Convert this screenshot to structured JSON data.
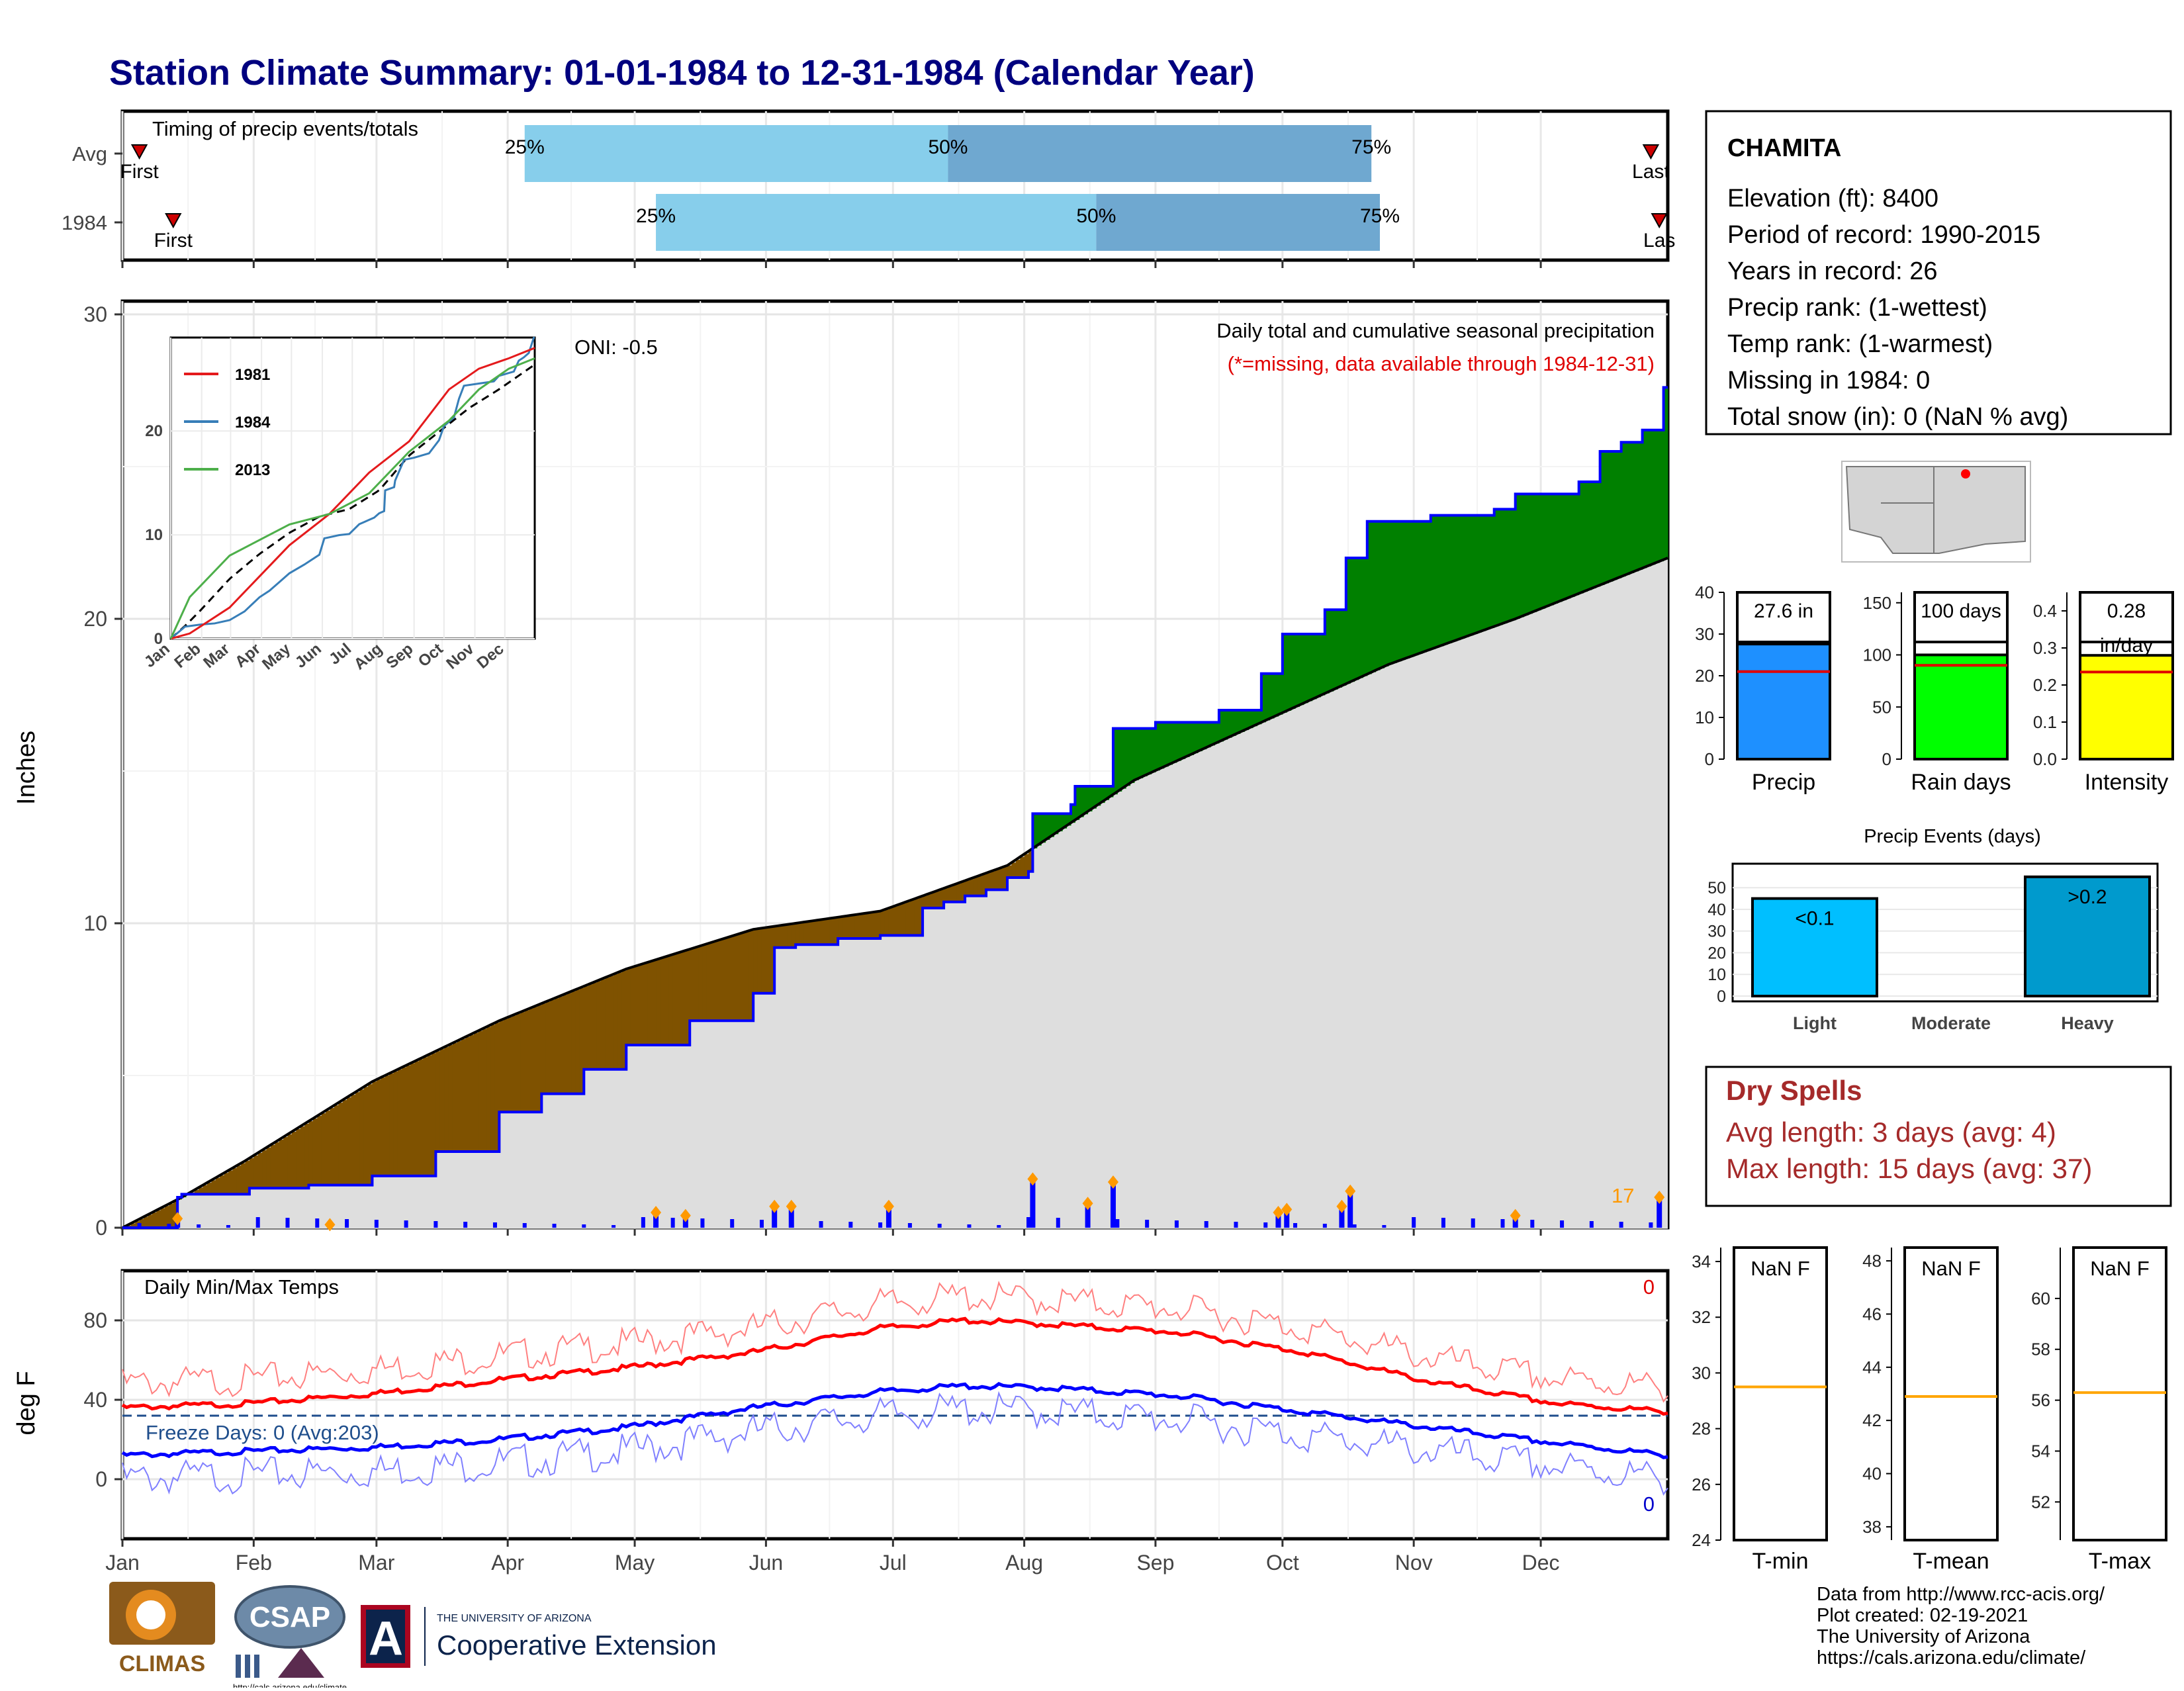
{
  "title": "Station Climate Summary: 01-01-1984 to 12-31-1984 (Calendar Year)",
  "colors": {
    "title": "#00007f",
    "wet": "#008000",
    "dry": "#7f5200",
    "normal": "#dedede",
    "cumulative": "#0000ff",
    "accent": "#ff9900",
    "dryspell": "#a52a2a"
  },
  "months": [
    "Jan",
    "Feb",
    "Mar",
    "Apr",
    "May",
    "Jun",
    "Jul",
    "Aug",
    "Sep",
    "Oct",
    "Nov",
    "Dec"
  ],
  "timing": {
    "title": "Timing of precip events/totals",
    "rows": [
      {
        "label": "Avg",
        "first_label": "First",
        "last_label": "Last",
        "p25": "25%",
        "p50": "50%",
        "p75": "75%",
        "first_day": 5,
        "p25_day": 96,
        "p50_day": 196,
        "p75_day": 296,
        "last_day": 362
      },
      {
        "label": "1984",
        "first_label": "First",
        "last_label": "Las",
        "p25": "25%",
        "p50": "50%",
        "p75": "75%",
        "first_day": 13,
        "p25_day": 127,
        "p50_day": 231,
        "p75_day": 298,
        "last_day": 364
      }
    ]
  },
  "info": {
    "station": "CHAMITA",
    "lines": [
      "Elevation (ft): 8400",
      "Period of record: 1990-2015",
      "Years in record: 26",
      "Precip rank:  (1-wettest)",
      "Temp rank:  (1-warmest)",
      "Missing in 1984: 0",
      "Total snow (in): 0 (NaN % avg)"
    ]
  },
  "main": {
    "ylabel": "Inches",
    "oni": "ONI: -0.5",
    "caption": "Daily total and cumulative seasonal precipitation",
    "missing_note": "(*=missing, data available through 1984-12-31)",
    "counter": "17"
  },
  "inset": {
    "legend": [
      {
        "name": "1981",
        "color": "#e41a1c"
      },
      {
        "name": "1984",
        "color": "#377eb8"
      },
      {
        "name": "2013",
        "color": "#4daf4a"
      }
    ],
    "yticks": [
      "0",
      "10",
      "20"
    ]
  },
  "temps": {
    "title": "Daily Min/Max Temps",
    "ylabel": "deg F",
    "freeze": "Freeze Days: 0 (Avg:203)",
    "max_count": "0",
    "min_count": "0"
  },
  "bars": [
    {
      "value_label": "27.6 in",
      "label": "Precip",
      "color": "#1e90ff",
      "ticks": [
        "0",
        "10",
        "20",
        "30",
        "40"
      ]
    },
    {
      "value_label": "100 days",
      "label": "Rain days",
      "color": "#00ff00",
      "ticks": [
        "0",
        "50",
        "100",
        "150"
      ]
    },
    {
      "value_label": "0.28",
      "value_label2": "in/day",
      "label": "Intensity",
      "color": "#ffff00",
      "ticks": [
        "0.0",
        "0.1",
        "0.2",
        "0.3",
        "0.4"
      ]
    }
  ],
  "events": {
    "title": "Precip Events (days)",
    "labels": [
      "Light",
      "Moderate",
      "Heavy"
    ],
    "value_labels": [
      "<0.1",
      "",
      ">0.2"
    ],
    "ticks": [
      "0",
      "10",
      "20",
      "30",
      "40",
      "50"
    ]
  },
  "dry_spells": {
    "title": "Dry Spells",
    "avg": "Avg length: 3 days (avg: 4)",
    "max": "Max length: 15 days (avg: 37)"
  },
  "temp_gauges": [
    {
      "value_label": "NaN F",
      "label": "T-min",
      "ticks": [
        "24",
        "26",
        "28",
        "30",
        "32",
        "34"
      ]
    },
    {
      "value_label": "NaN F",
      "label": "T-mean",
      "ticks": [
        "38",
        "40",
        "42",
        "44",
        "46",
        "48"
      ]
    },
    {
      "value_label": "NaN F",
      "label": "T-max",
      "ticks": [
        "52",
        "54",
        "56",
        "58",
        "60"
      ]
    }
  ],
  "footer": {
    "lines": [
      "Data from http://www.rcc-acis.org/",
      "Plot created: 02-19-2021",
      "The University of Arizona",
      "https://cals.arizona.edu/climate/"
    ],
    "logo_climas": "CLIMAS",
    "logo_csap": "CSAP",
    "logo_csap_url": "http://cals.arizona.edu/climate",
    "logo_ua_small": "THE UNIVERSITY OF ARIZONA",
    "logo_ua_big": "Cooperative Extension",
    "logo_ua_letter": "A"
  },
  "chart_data": {
    "type": "area",
    "title": "",
    "ylabel": "Inches",
    "ylim": [
      0,
      30
    ],
    "xlim_days": [
      1,
      366
    ],
    "series": [
      {
        "name": "1984",
        "x_day": [
          1,
          14,
          15,
          31,
          45,
          60,
          75,
          90,
          100,
          110,
          120,
          135,
          150,
          155,
          160,
          170,
          180,
          190,
          195,
          200,
          205,
          210,
          215,
          216,
          225,
          226,
          235,
          245,
          260,
          270,
          275,
          285,
          290,
          295,
          310,
          325,
          330,
          345,
          350,
          355,
          360,
          365,
          366
        ],
        "y": [
          0,
          1.0,
          1.1,
          1.3,
          1.4,
          1.7,
          2.5,
          3.8,
          4.4,
          5.2,
          6.0,
          6.8,
          7.7,
          9.2,
          9.3,
          9.5,
          9.6,
          10.5,
          10.7,
          10.9,
          11.1,
          11.5,
          11.7,
          13.6,
          13.9,
          14.5,
          16.4,
          16.6,
          17.0,
          18.2,
          19.5,
          20.3,
          22.0,
          23.2,
          23.4,
          23.6,
          24.1,
          24.5,
          25.5,
          25.8,
          26.2,
          27.6,
          27.6
        ]
      },
      {
        "name": "Average",
        "x_day": [
          1,
          15,
          30,
          60,
          90,
          120,
          150,
          180,
          210,
          240,
          270,
          300,
          330,
          366
        ],
        "y": [
          0,
          1.0,
          2.2,
          4.8,
          6.8,
          8.5,
          9.8,
          10.4,
          11.9,
          14.7,
          16.6,
          18.5,
          20.0,
          22.0
        ]
      }
    ],
    "daily_events_inches": [
      {
        "day": 14,
        "value": 0.3
      },
      {
        "day": 50,
        "value": 0.1
      },
      {
        "day": 127,
        "value": 0.5
      },
      {
        "day": 134,
        "value": 0.4
      },
      {
        "day": 155,
        "value": 0.7
      },
      {
        "day": 159,
        "value": 0.7
      },
      {
        "day": 182,
        "value": 0.7
      },
      {
        "day": 216,
        "value": 1.6
      },
      {
        "day": 229,
        "value": 0.8
      },
      {
        "day": 235,
        "value": 1.5
      },
      {
        "day": 274,
        "value": 0.5
      },
      {
        "day": 276,
        "value": 0.6
      },
      {
        "day": 289,
        "value": 0.7
      },
      {
        "day": 291,
        "value": 1.2
      },
      {
        "day": 330,
        "value": 0.4
      },
      {
        "day": 364,
        "value": 1.0
      }
    ],
    "temperatures_degF": {
      "avg_max": {
        "x_day": [
          1,
          30,
          60,
          90,
          120,
          150,
          180,
          200,
          220,
          250,
          280,
          310,
          340,
          366
        ],
        "y": [
          36,
          38,
          43,
          50,
          56,
          64,
          76,
          80,
          78,
          74,
          64,
          49,
          38,
          34
        ]
      },
      "avg_min": {
        "x_day": [
          1,
          30,
          60,
          90,
          120,
          150,
          180,
          200,
          220,
          250,
          280,
          310,
          340,
          366
        ],
        "y": [
          12,
          14,
          16,
          20,
          26,
          36,
          44,
          47,
          46,
          42,
          34,
          26,
          18,
          12
        ]
      },
      "freeze_threshold": 32,
      "ylim": [
        -30,
        105
      ]
    },
    "precip_total_in": 27.6,
    "rain_days": 100,
    "intensity_in_per_day": 0.28,
    "events_days": {
      "Light": 45,
      "Moderate": 0,
      "Heavy": 55
    }
  }
}
